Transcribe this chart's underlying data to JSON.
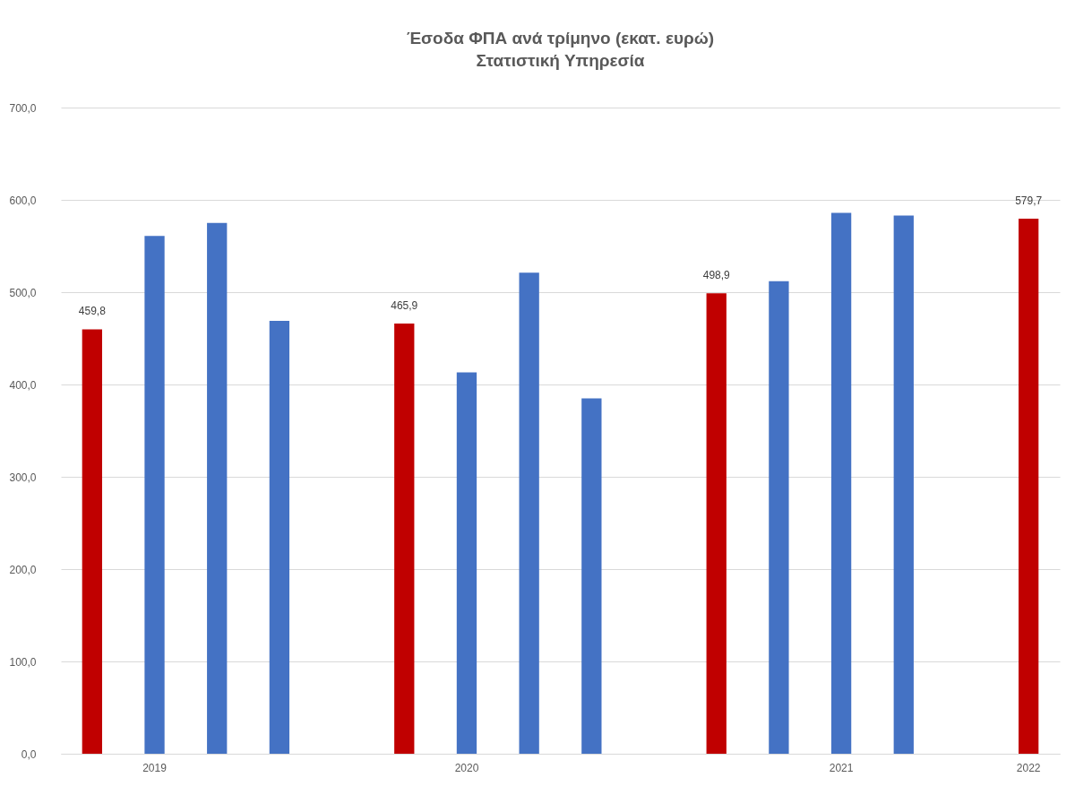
{
  "chart_data": {
    "type": "bar",
    "title": "Έσοδα ΦΠΑ ανά τρίμηνο (εκατ. ευρώ)",
    "subtitle": "Στατιστική Υπηρεσία",
    "categories": [
      null,
      "2019",
      null,
      null,
      null,
      null,
      "2020",
      null,
      null,
      null,
      null,
      null,
      "2021",
      null,
      null,
      "2022"
    ],
    "values": [
      459.8,
      561,
      575,
      469,
      null,
      465.9,
      413,
      521,
      385,
      null,
      498.9,
      512,
      586,
      583,
      null,
      579.7
    ],
    "colors": [
      "#c00000",
      "#4472c4",
      "#4472c4",
      "#4472c4",
      "#4472c4",
      "#c00000",
      "#4472c4",
      "#4472c4",
      "#4472c4",
      "#4472c4",
      "#c00000",
      "#4472c4",
      "#4472c4",
      "#4472c4",
      "#4472c4",
      "#c00000"
    ],
    "value_labels": [
      "459,8",
      null,
      null,
      null,
      null,
      "465,9",
      null,
      null,
      null,
      null,
      "498,9",
      null,
      null,
      null,
      null,
      "579,7"
    ],
    "ylim": [
      0,
      700
    ],
    "yticks": [
      {
        "value": 0,
        "label": "0,0"
      },
      {
        "value": 100,
        "label": "100,0"
      },
      {
        "value": 200,
        "label": "200,0"
      },
      {
        "value": 300,
        "label": "300,0"
      },
      {
        "value": 400,
        "label": "400,0"
      },
      {
        "value": 500,
        "label": "500,0"
      },
      {
        "value": 600,
        "label": "600,0"
      },
      {
        "value": 700,
        "label": "700,0"
      }
    ],
    "grid": "y"
  }
}
